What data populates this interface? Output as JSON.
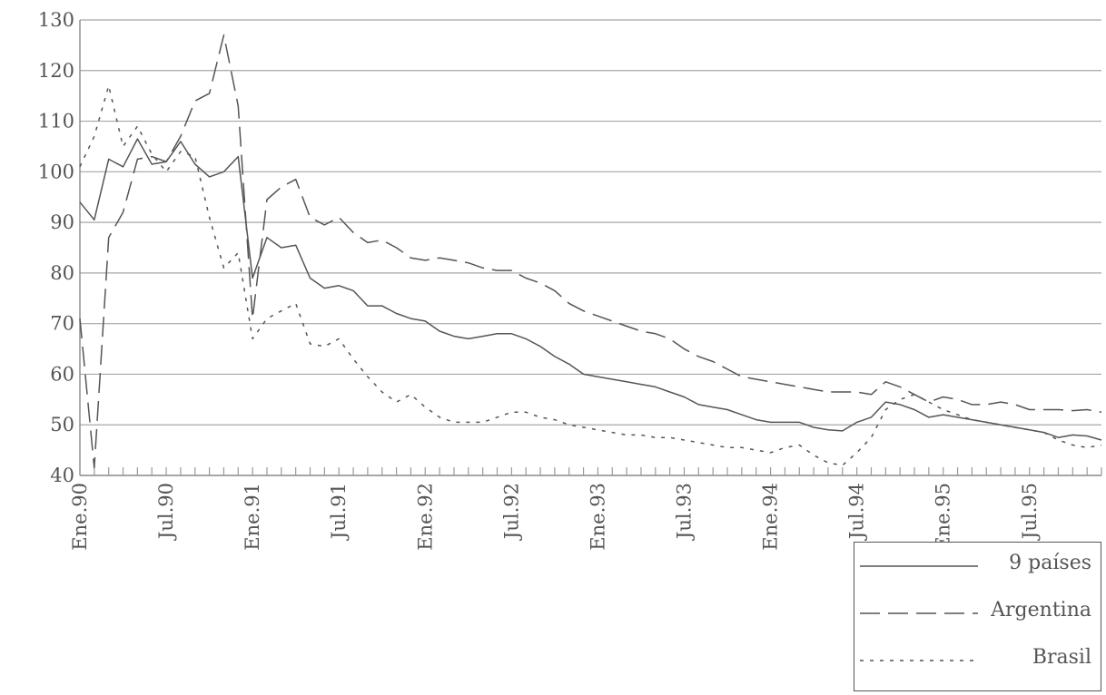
{
  "chart_data": {
    "type": "line",
    "title": "",
    "xlabel": "",
    "ylabel": "",
    "ylim": [
      40,
      130
    ],
    "y_ticks": [
      40,
      50,
      60,
      70,
      80,
      90,
      100,
      110,
      120,
      130
    ],
    "grid": true,
    "legend_position": "bottom-right",
    "x_start": "Ene.90",
    "x_end": "Dic.95",
    "x_tick_labels": [
      {
        "label": "Ene.90",
        "month": 0
      },
      {
        "label": "Jul.90",
        "month": 6
      },
      {
        "label": "Ene.91",
        "month": 12
      },
      {
        "label": "Jul.91",
        "month": 18
      },
      {
        "label": "Ene.92",
        "month": 24
      },
      {
        "label": "Jul.92",
        "month": 30
      },
      {
        "label": "Ene.93",
        "month": 36
      },
      {
        "label": "Jul.93",
        "month": 42
      },
      {
        "label": "Ene.94",
        "month": 48
      },
      {
        "label": "Jul.94",
        "month": 54
      },
      {
        "label": "Ene.95",
        "month": 60
      },
      {
        "label": "Jul.95",
        "month": 66
      }
    ],
    "series": [
      {
        "name": "9 países",
        "dash": "solid",
        "values": [
          94,
          90.5,
          102.5,
          101,
          106.5,
          101.5,
          102,
          106,
          101.5,
          99,
          100,
          103,
          79,
          87,
          85,
          85.5,
          79,
          77,
          77.5,
          76.5,
          73.5,
          73.5,
          72,
          71,
          70.5,
          68.5,
          67.5,
          67,
          67.5,
          68,
          68,
          67,
          65.5,
          63.5,
          62,
          60,
          59.5,
          59,
          58.5,
          58,
          57.5,
          56.5,
          55.5,
          54,
          53.5,
          53,
          52,
          51,
          50.5,
          50.5,
          50.5,
          49.5,
          49,
          48.8,
          50.5,
          51.5,
          54.5,
          54,
          53,
          51.5,
          52,
          51.5,
          51,
          50.5,
          50,
          49.5,
          49,
          48.5,
          47.5,
          48,
          47.8,
          47
        ]
      },
      {
        "name": "Argentina",
        "dash": "dashed",
        "values": [
          71,
          41.5,
          87,
          92,
          102.5,
          103,
          102,
          107,
          114,
          115.5,
          127,
          113,
          71,
          94.5,
          97,
          98.5,
          91,
          89.5,
          91,
          88,
          86,
          86.5,
          85,
          83,
          82.5,
          83,
          82.5,
          82,
          81,
          80.5,
          80.5,
          79,
          78,
          76.5,
          74,
          72.5,
          71.5,
          70.5,
          69.5,
          68.5,
          68,
          67,
          65,
          63.5,
          62.5,
          61,
          59.5,
          59,
          58.5,
          58,
          57.5,
          57,
          56.5,
          56.5,
          56.5,
          56,
          58.5,
          57.5,
          56,
          54.5,
          55.5,
          55,
          54,
          54,
          54.5,
          54,
          53,
          53,
          53,
          52.8,
          53,
          52.5
        ]
      },
      {
        "name": "Brasil",
        "dash": "dotted",
        "values": [
          101,
          107,
          117,
          105,
          109,
          103.5,
          100,
          104,
          103,
          91,
          81,
          84,
          67,
          71,
          72.5,
          74,
          66,
          65.5,
          67,
          63,
          59.5,
          56.5,
          54.5,
          56,
          53.5,
          51.5,
          50.5,
          50.5,
          50.5,
          51.5,
          52.5,
          52.5,
          51.5,
          51,
          50,
          49.5,
          49,
          48.5,
          48,
          48,
          47.5,
          47.5,
          47,
          46.5,
          46,
          45.5,
          45.5,
          45,
          44.5,
          45.5,
          46,
          44,
          42.5,
          42,
          44.5,
          47.5,
          53,
          55,
          56,
          54.5,
          53,
          52,
          51,
          50.5,
          50,
          49.5,
          49,
          48.5,
          47,
          46,
          45.5,
          46
        ]
      }
    ]
  }
}
